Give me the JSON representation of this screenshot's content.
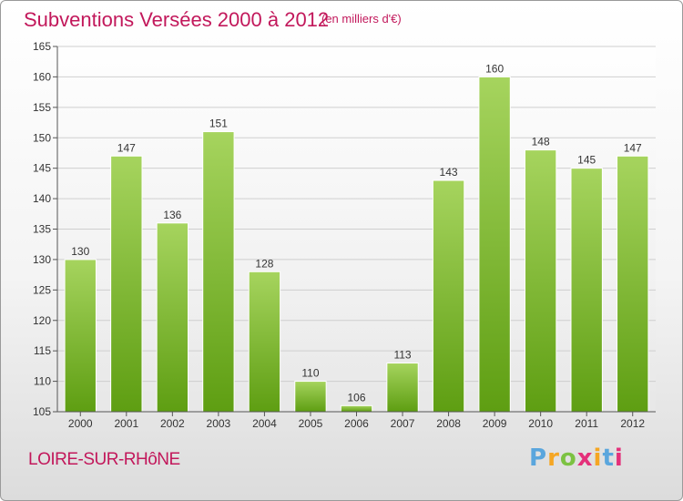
{
  "title": "Subventions Versées 2000 à 2012",
  "title_unit": "(en milliers d'€)",
  "town": "LOIRE-SUR-RHôNE",
  "logo": {
    "letters": [
      "P",
      "r",
      "o",
      "x",
      "i",
      "t",
      "i"
    ],
    "colors": [
      "#5aa6dd",
      "#f5a623",
      "#7cc242",
      "#e4307a",
      "#f5a623",
      "#5aa6dd",
      "#e4307a"
    ]
  },
  "colors": {
    "bar_light": "#a6d45e",
    "bar_dark": "#5e9e12",
    "axis": "#555555",
    "grid": "#cfcfcf",
    "text": "#333333",
    "accent": "#c2185b"
  },
  "chart_data": {
    "type": "bar",
    "title": "Subventions Versées 2000 à 2012",
    "xlabel": "",
    "ylabel": "",
    "categories": [
      "2000",
      "2001",
      "2002",
      "2003",
      "2004",
      "2005",
      "2006",
      "2007",
      "2008",
      "2009",
      "2010",
      "2011",
      "2012"
    ],
    "values": [
      130,
      147,
      136,
      151,
      128,
      110,
      106,
      113,
      143,
      160,
      148,
      145,
      147
    ],
    "ylim": [
      105,
      165
    ],
    "yticks": [
      105,
      110,
      115,
      120,
      125,
      130,
      135,
      140,
      145,
      150,
      155,
      160,
      165
    ],
    "grid": true,
    "legend": "none"
  }
}
